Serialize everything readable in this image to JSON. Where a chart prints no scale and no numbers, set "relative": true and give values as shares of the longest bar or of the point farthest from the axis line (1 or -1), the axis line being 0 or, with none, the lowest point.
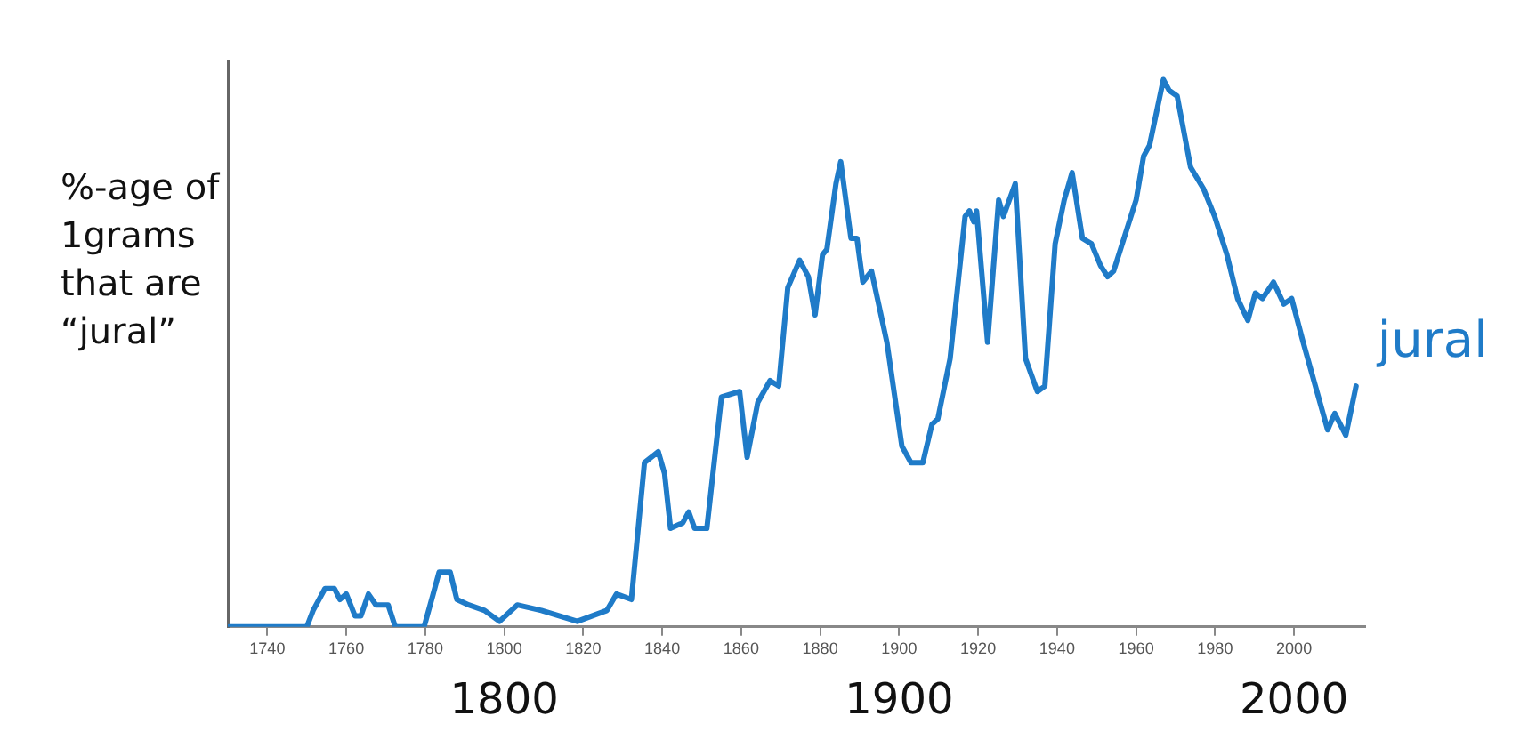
{
  "chart_data": {
    "type": "line",
    "relative": true,
    "ylabel": "%-age of 1grams that are “jural”",
    "xlim": [
      1730,
      2018
    ],
    "xticks": [
      1740,
      1760,
      1780,
      1800,
      1820,
      1840,
      1860,
      1880,
      1900,
      1920,
      1940,
      1960,
      1980,
      2000
    ],
    "x2lim": [
      1730,
      2018
    ],
    "x2ticks": [
      1800,
      1900,
      2000
    ],
    "grid": false,
    "legend": false,
    "marker": "none",
    "line_style": "solid",
    "series": [
      {
        "name": "jural",
        "color": "#1f7bc8",
        "x": [
          1730.3,
          1750,
          1751.6,
          1754.6,
          1757,
          1758.4,
          1760,
          1762.2,
          1763.7,
          1765.6,
          1767.5,
          1770.6,
          1772.4,
          1779.7,
          1782,
          1783.5,
          1786.3,
          1788,
          1791,
          1795,
          1798.8,
          1803.3,
          1809.4,
          1818.5,
          1826,
          1828.4,
          1832.2,
          1835.5,
          1839,
          1840.6,
          1842.1,
          1845.2,
          1846.7,
          1848.2,
          1851.3,
          1855,
          1859.6,
          1861.5,
          1864.2,
          1867.3,
          1869.5,
          1871.8,
          1874.8,
          1877,
          1878.7,
          1880.6,
          1881.7,
          1884,
          1885.2,
          1887.8,
          1889.3,
          1890.8,
          1893,
          1896.9,
          1900.7,
          1903,
          1906,
          1908.3,
          1909.8,
          1912.9,
          1916.7,
          1917.8,
          1918.9,
          1919.6,
          1922.4,
          1925.2,
          1926.4,
          1929.4,
          1932,
          1935,
          1936.9,
          1939.5,
          1941.8,
          1943.8,
          1946.4,
          1948.7,
          1951,
          1952.8,
          1954.3,
          1960,
          1961.9,
          1963.4,
          1966.9,
          1968.4,
          1970.4,
          1973.8,
          1977.1,
          1979.9,
          1983,
          1985.7,
          1988.3,
          1990.2,
          1992,
          1994.8,
          1997.4,
          1999.4,
          2002.3,
          2005.4,
          2008.5,
          2010.3,
          2013.1,
          2015.7
        ],
        "values": [
          0,
          0,
          0.03,
          0.07,
          0.07,
          0.05,
          0.06,
          0.02,
          0.02,
          0.06,
          0.04,
          0.04,
          0,
          0,
          0.06,
          0.1,
          0.1,
          0.05,
          0.04,
          0.03,
          0.01,
          0.04,
          0.03,
          0.01,
          0.03,
          0.06,
          0.05,
          0.3,
          0.32,
          0.28,
          0.18,
          0.19,
          0.21,
          0.18,
          0.18,
          0.42,
          0.43,
          0.31,
          0.41,
          0.45,
          0.44,
          0.62,
          0.67,
          0.64,
          0.57,
          0.68,
          0.69,
          0.81,
          0.85,
          0.71,
          0.71,
          0.63,
          0.65,
          0.52,
          0.33,
          0.3,
          0.3,
          0.37,
          0.38,
          0.49,
          0.75,
          0.76,
          0.74,
          0.76,
          0.52,
          0.78,
          0.75,
          0.81,
          0.49,
          0.43,
          0.44,
          0.7,
          0.78,
          0.83,
          0.71,
          0.7,
          0.66,
          0.64,
          0.65,
          0.78,
          0.86,
          0.88,
          1,
          0.98,
          0.97,
          0.84,
          0.8,
          0.75,
          0.68,
          0.6,
          0.56,
          0.61,
          0.6,
          0.63,
          0.59,
          0.6,
          0.52,
          0.44,
          0.36,
          0.39,
          0.35,
          0.44
        ]
      }
    ]
  }
}
